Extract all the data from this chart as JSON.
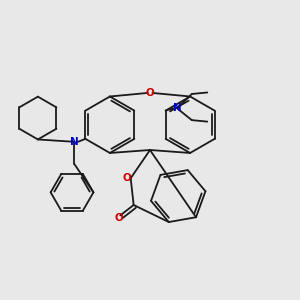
{
  "bg_color": "#e8e8e8",
  "bond_color": "#1a1a1a",
  "n_color": "#0000cc",
  "o_color": "#cc0000",
  "lw": 1.3,
  "dbg": 0.012,
  "fig_w": 3.0,
  "fig_h": 3.0,
  "dpi": 100,
  "xlim": [
    0.0,
    1.0
  ],
  "ylim": [
    0.0,
    1.0
  ]
}
